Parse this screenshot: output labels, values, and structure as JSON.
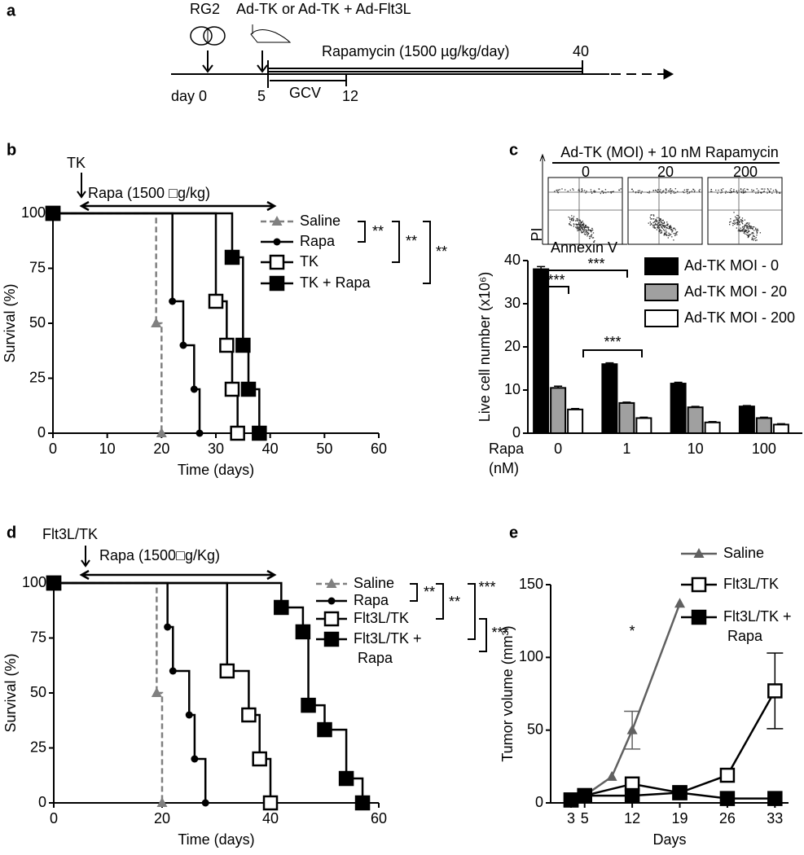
{
  "diagram_a": {
    "label": "a",
    "injection_1": "RG2",
    "injection_2": "Ad-TK or Ad-TK + Ad-Flt3L",
    "drug": "Rapamycin (1500 µg/kg/day)",
    "drug_end": "40",
    "start": "day 0",
    "treatment_start": "5",
    "gcv": "GCV",
    "gcv_end": "12"
  },
  "chart_data": [
    {
      "panel_label": "b",
      "type": "survival",
      "xlabel": "Time (days)",
      "ylabel": "Survival (%)",
      "xlim": [
        0,
        60
      ],
      "ylim": [
        0,
        100
      ],
      "xticks": [
        0,
        10,
        20,
        30,
        40,
        50,
        60
      ],
      "yticks": [
        0,
        25,
        50,
        75,
        100
      ],
      "annotations": [
        "TK",
        "Rapa (1500 □g/kg)"
      ],
      "significance": [
        "**",
        "**",
        "**"
      ],
      "series": [
        {
          "name": "Saline",
          "color": "#808080",
          "marker": "triangle",
          "dashed": true,
          "x": [
            0,
            19,
            20
          ],
          "values": [
            100,
            50,
            0
          ]
        },
        {
          "name": "Rapa",
          "color": "#000000",
          "marker": "circle",
          "dashed": false,
          "x": [
            0,
            22,
            24,
            26,
            27
          ],
          "values": [
            100,
            60,
            40,
            20,
            0
          ]
        },
        {
          "name": "TK",
          "color": "#000000",
          "marker": "square-open",
          "dashed": false,
          "x": [
            0,
            30,
            32,
            33,
            34
          ],
          "values": [
            100,
            60,
            40,
            20,
            0
          ]
        },
        {
          "name": "TK + Rapa",
          "color": "#000000",
          "marker": "square",
          "dashed": false,
          "x": [
            0,
            33,
            35,
            36,
            38
          ],
          "values": [
            100,
            80,
            40,
            20,
            0
          ]
        }
      ]
    },
    {
      "panel_label": "c",
      "type": "bar",
      "flow_title": "Ad-TK (MOI) + 10 nM Rapamycin",
      "flow_doses": [
        "0",
        "20",
        "200"
      ],
      "flow_ylabel": "PI",
      "flow_xlabel": "Annexin V",
      "ylabel": "Live cell number (x10⁶)",
      "xlabel": [
        "Rapa",
        "(nM)"
      ],
      "categories": [
        "0",
        "1",
        "10",
        "100"
      ],
      "ylim": [
        0,
        40
      ],
      "yticks": [
        0,
        10,
        20,
        30,
        40
      ],
      "significance": [
        "***",
        "***",
        "***"
      ],
      "series": [
        {
          "name": "Ad-TK MOI - 0",
          "color": "#000000",
          "values": [
            38,
            16,
            11.5,
            6.2
          ],
          "errors": [
            0.6,
            0.3,
            0.3,
            0.2
          ]
        },
        {
          "name": "Ad-TK MOI - 20",
          "color": "#a0a0a0",
          "values": [
            10.5,
            7,
            6,
            3.5
          ],
          "errors": [
            0.4,
            0.2,
            0.2,
            0.2
          ]
        },
        {
          "name": "Ad-TK MOI - 200",
          "color": "#ffffff",
          "values": [
            5.5,
            3.5,
            2.5,
            2
          ],
          "errors": [
            0.2,
            0.2,
            0.2,
            0.2
          ]
        }
      ]
    },
    {
      "panel_label": "d",
      "type": "survival",
      "xlabel": "Time (days)",
      "ylabel": "Survival (%)",
      "xlim": [
        0,
        60
      ],
      "ylim": [
        0,
        100
      ],
      "xticks": [
        0,
        20,
        40,
        60
      ],
      "yticks": [
        0,
        25,
        50,
        75,
        100
      ],
      "annotations": [
        "Flt3L/TK",
        "Rapa (1500□g/Kg)"
      ],
      "significance": [
        "**",
        "**",
        "***",
        "***"
      ],
      "series": [
        {
          "name": "Saline",
          "color": "#808080",
          "marker": "triangle",
          "dashed": true,
          "x": [
            0,
            19,
            20
          ],
          "values": [
            100,
            50,
            0
          ]
        },
        {
          "name": "Rapa",
          "color": "#000000",
          "marker": "circle",
          "dashed": false,
          "x": [
            0,
            21,
            22,
            25,
            26,
            28
          ],
          "values": [
            100,
            80,
            60,
            40,
            20,
            0
          ]
        },
        {
          "name": "Flt3L/TK",
          "color": "#000000",
          "marker": "square-open",
          "dashed": false,
          "x": [
            0,
            32,
            36,
            38,
            40
          ],
          "values": [
            100,
            60,
            40,
            20,
            0
          ]
        },
        {
          "name": "Flt3L/TK + Rapa",
          "color": "#000000",
          "marker": "square",
          "dashed": false,
          "x": [
            0,
            42,
            46,
            47,
            50,
            54,
            57
          ],
          "values": [
            100,
            88.9,
            77.8,
            44.4,
            33.3,
            11.1,
            0
          ]
        }
      ]
    },
    {
      "panel_label": "e",
      "type": "line",
      "xlabel": "Days",
      "ylabel": "Tumor volume (mm³)",
      "xlim": [
        0,
        35
      ],
      "ylim": [
        0,
        150
      ],
      "xticks": [
        3,
        5,
        12,
        19,
        26,
        33
      ],
      "yticks": [
        0,
        50,
        100,
        150
      ],
      "annotations": [
        "*"
      ],
      "series": [
        {
          "name": "Saline",
          "color": "#606060",
          "marker": "triangle",
          "x": [
            3,
            5,
            9,
            12,
            19
          ],
          "values": [
            2,
            5,
            18,
            50,
            137
          ],
          "errors": [
            null,
            null,
            null,
            13,
            null
          ]
        },
        {
          "name": "Flt3L/TK",
          "color": "#000000",
          "marker": "square-open",
          "x": [
            3,
            5,
            12,
            19,
            26,
            33
          ],
          "values": [
            2,
            5,
            13,
            7,
            19,
            77
          ],
          "errors": [
            null,
            null,
            null,
            null,
            null,
            26
          ]
        },
        {
          "name": "Flt3L/TK + Rapa",
          "color": "#000000",
          "marker": "square",
          "x": [
            3,
            5,
            12,
            19,
            26,
            33
          ],
          "values": [
            2,
            5,
            5,
            7,
            3,
            3
          ],
          "errors": [
            null,
            null,
            null,
            null,
            null,
            null
          ]
        }
      ]
    }
  ]
}
